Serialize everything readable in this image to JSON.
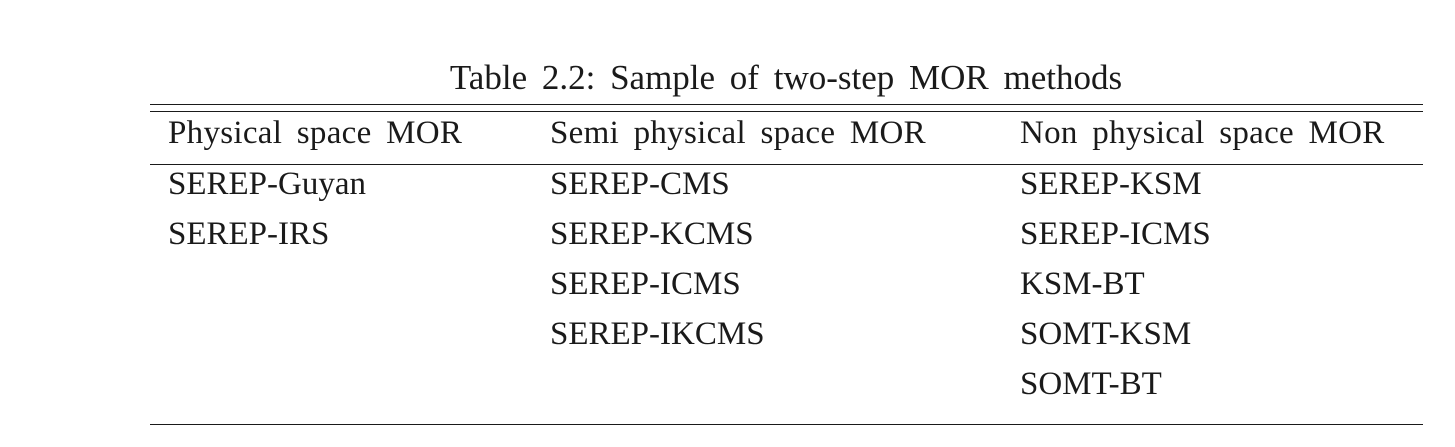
{
  "table": {
    "caption": "Table 2.2: Sample of two-step MOR methods",
    "headers": [
      "Physical space MOR",
      "Semi physical space MOR",
      "Non physical space MOR"
    ],
    "columns": [
      [
        "SEREP-Guyan",
        "SEREP-IRS"
      ],
      [
        "SEREP-CMS",
        "SEREP-KCMS",
        "SEREP-ICMS",
        "SEREP-IKCMS"
      ],
      [
        "SEREP-KSM",
        "SEREP-ICMS",
        "KSM-BT",
        "SOMT-KSM",
        "SOMT-BT"
      ]
    ]
  }
}
